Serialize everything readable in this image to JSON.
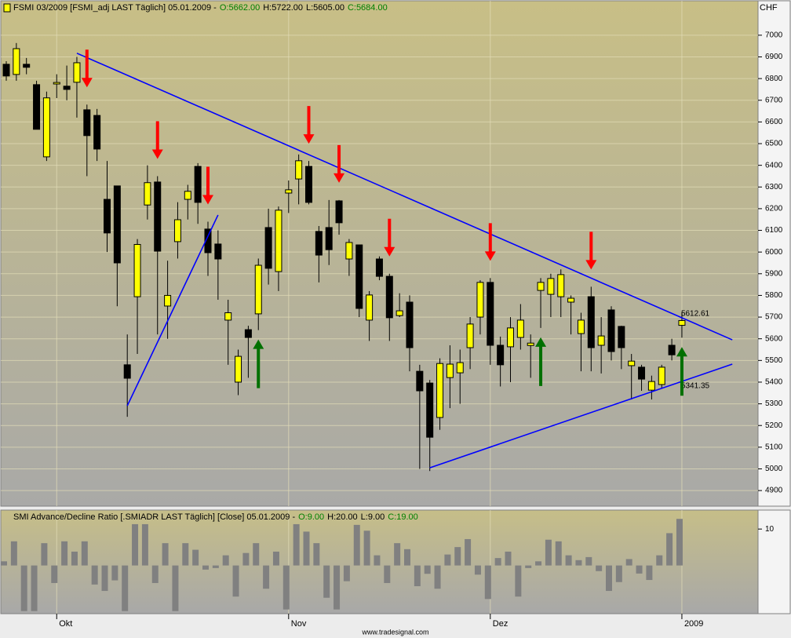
{
  "chart_data": [
    {
      "type": "candlestick",
      "title": "FSMI 03/2009 [FSMI_adj LAST Täglich] 05.01.2009 -",
      "legend": [
        {
          "text": "O:5662.00",
          "color": "#008000"
        },
        {
          "text": "H:5722.00",
          "color": "#000000"
        },
        {
          "text": "L:5605.00",
          "color": "#000000"
        },
        {
          "text": "C:5684.00",
          "color": "#008000"
        }
      ],
      "unit": "CHF",
      "categories": [
        null,
        null,
        null,
        null,
        null,
        "Okt",
        null,
        null,
        null,
        null,
        null,
        null,
        null,
        null,
        null,
        null,
        null,
        null,
        null,
        null,
        null,
        null,
        null,
        null,
        null,
        null,
        null,
        null,
        "Nov",
        null,
        null,
        null,
        null,
        null,
        null,
        null,
        null,
        null,
        null,
        null,
        null,
        null,
        null,
        null,
        null,
        null,
        null,
        null,
        "Dez",
        null,
        null,
        null,
        null,
        null,
        null,
        null,
        null,
        null,
        null,
        null,
        null,
        null,
        null,
        null,
        null,
        null,
        null,
        "2009"
      ],
      "open": [
        6866,
        6819,
        6866,
        6772,
        6439,
        6775,
        6765,
        6783,
        6656,
        6630,
        6243,
        6305,
        5480,
        5794,
        6217,
        6323,
        5751,
        6048,
        6243,
        6395,
        6106,
        6037,
        5686,
        5400,
        5642,
        5715,
        6113,
        5910,
        6272,
        6337,
        6395,
        6095,
        6113,
        6236,
        5968,
        6033,
        5686,
        5968,
        5888,
        5707,
        5769,
        5450,
        5396,
        5237,
        5421,
        5443,
        5559,
        5700,
        5860,
        5570,
        5563,
        5606,
        5569,
        5823,
        5805,
        5794,
        5769,
        5624,
        5794,
        5570,
        5733,
        5657,
        5476,
        5469,
        5363,
        5389,
        5570,
        5662
      ],
      "high": [
        6880,
        6964,
        6895,
        6790,
        6740,
        6820,
        6860,
        6900,
        6680,
        6660,
        6420,
        6305,
        5620,
        6060,
        6400,
        6350,
        5960,
        6230,
        6310,
        6410,
        6140,
        6100,
        5780,
        5550,
        5660,
        5970,
        6200,
        6210,
        6330,
        6450,
        6420,
        6120,
        6240,
        6240,
        6060,
        6033,
        5820,
        5980,
        5900,
        5810,
        5800,
        5480,
        5410,
        5510,
        5570,
        5550,
        5700,
        5870,
        5880,
        5610,
        5700,
        5760,
        5620,
        5880,
        5900,
        5920,
        5800,
        5720,
        5840,
        5700,
        5750,
        5660,
        5530,
        5480,
        5430,
        5480,
        5600,
        5722
      ],
      "low": [
        6790,
        6790,
        6820,
        6566,
        6420,
        6710,
        6700,
        6620,
        6350,
        6420,
        6000,
        5750,
        5240,
        5530,
        6150,
        5620,
        5600,
        5970,
        6150,
        6130,
        5890,
        5780,
        5480,
        5340,
        5420,
        5640,
        5850,
        5820,
        6180,
        6220,
        6220,
        5860,
        5940,
        6080,
        5890,
        5700,
        5590,
        5870,
        5590,
        5700,
        5450,
        5000,
        4990,
        5180,
        5280,
        5300,
        5460,
        5620,
        5480,
        5380,
        5400,
        5550,
        5420,
        5650,
        5700,
        5700,
        5620,
        5450,
        5450,
        5440,
        5500,
        5460,
        5320,
        5360,
        5320,
        5370,
        5500,
        5605
      ],
      "close": [
        6812,
        6938,
        6852,
        6566,
        6711,
        6782,
        6750,
        6873,
        6537,
        6475,
        6088,
        5950,
        5418,
        6035,
        6320,
        6004,
        5800,
        6149,
        6280,
        6229,
        5997,
        5968,
        5720,
        5519,
        5606,
        5939,
        5925,
        6193,
        6287,
        6421,
        6229,
        5986,
        6011,
        6135,
        6044,
        5740,
        5802,
        5888,
        5697,
        5729,
        5559,
        5360,
        5146,
        5486,
        5483,
        5490,
        5668,
        5860,
        5570,
        5480,
        5650,
        5686,
        5580,
        5860,
        5878,
        5896,
        5787,
        5686,
        5559,
        5613,
        5541,
        5559,
        5497,
        5414,
        5403,
        5469,
        5526,
        5684
      ],
      "up_color": "#ffff00",
      "down_color": "#000000",
      "ylim": [
        4828,
        7090
      ],
      "yticks": [
        4900,
        5000,
        5100,
        5200,
        5300,
        5400,
        5500,
        5600,
        5700,
        5800,
        5900,
        6000,
        6100,
        6200,
        6300,
        6400,
        6500,
        6600,
        6700,
        6800,
        6900,
        7000
      ],
      "grid": true,
      "trend_lines": [
        {
          "color": "#0000ff",
          "points": [
            [
              7,
              6917
            ],
            [
              72,
              5595
            ]
          ],
          "label": "5612.61"
        },
        {
          "color": "#0000ff",
          "points": [
            [
              12,
              5291
            ],
            [
              21,
              6171
            ]
          ]
        },
        {
          "color": "#0000ff",
          "points": [
            [
              42,
              5005
            ],
            [
              72,
              5483
            ]
          ],
          "label": "5341.35"
        }
      ],
      "arrows": {
        "down": {
          "color": "#ff0000",
          "at": [
            8,
            15,
            20,
            30,
            33,
            38,
            48,
            58
          ]
        },
        "up": {
          "color": "#007000",
          "at": [
            25,
            53,
            67
          ]
        }
      }
    },
    {
      "type": "bar",
      "title": "SMI Advance/Decline Ratio [.SMIADR LAST Täglich] [Close] 05.01.2009 -",
      "legend": [
        {
          "text": "O:9.00",
          "color": "#008000"
        },
        {
          "text": "H:20.00",
          "color": "#000000"
        },
        {
          "text": "L:9.00",
          "color": "#000000"
        },
        {
          "text": "C:19.00",
          "color": "#008000"
        }
      ],
      "values": [
        1.3,
        4.6,
        0.056,
        0.056,
        4.1,
        0.33,
        4.6,
        2.4,
        4.6,
        0.3,
        0.2,
        0.39,
        0.056,
        13.6,
        13.6,
        0.33,
        4.1,
        0.056,
        4.1,
        2.7,
        0.77,
        0.85,
        1.9,
        0.14,
        2.2,
        4.1,
        0.23,
        2.4,
        0.062,
        13.6,
        8.5,
        4.1,
        0.13,
        0.062,
        0.37,
        13,
        9,
        1.9,
        0.33,
        4.1,
        2.8,
        0.27,
        0.59,
        0.23,
        2.0,
        3.2,
        5.3,
        0.56,
        0.12,
        1.6,
        2.4,
        0.14,
        0.85,
        1.3,
        5.1,
        4.6,
        1.9,
        1.4,
        1.7,
        0.7,
        0.2,
        0.35,
        1.5,
        0.6,
        0.4,
        1.9,
        7.7,
        19
      ],
      "color": "#808080",
      "log": true,
      "ylim": [
        0.05,
        30
      ],
      "yticks": [
        10
      ]
    }
  ],
  "footer": "www.tradesignal.com"
}
